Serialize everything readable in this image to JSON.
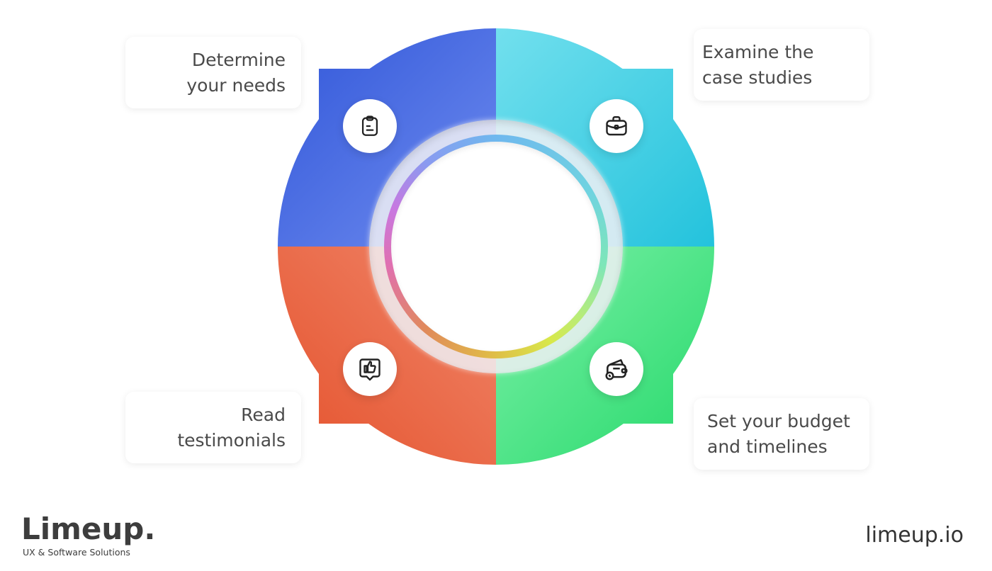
{
  "steps": [
    {
      "label_lines": [
        "Determine",
        "your needs"
      ],
      "icon": "clipboard-icon",
      "color_from": "#2f55d8",
      "color_to": "#6f8cef"
    },
    {
      "label_lines": [
        "Examine the",
        "case studies"
      ],
      "icon": "briefcase-icon",
      "color_from": "#73e0ee",
      "color_to": "#22c2dc"
    },
    {
      "label_lines": [
        "Read",
        "testimonials"
      ],
      "icon": "thumbs-up-icon",
      "color_from": "#e4502a",
      "color_to": "#f0866a"
    },
    {
      "label_lines": [
        "Set your budget",
        "and timelines"
      ],
      "icon": "wallet-icon",
      "color_from": "#7cf0a8",
      "color_to": "#22d868"
    }
  ],
  "brand": {
    "logo": "Limeup.",
    "tagline": "UX & Software Solutions",
    "website": "limeup.io"
  }
}
